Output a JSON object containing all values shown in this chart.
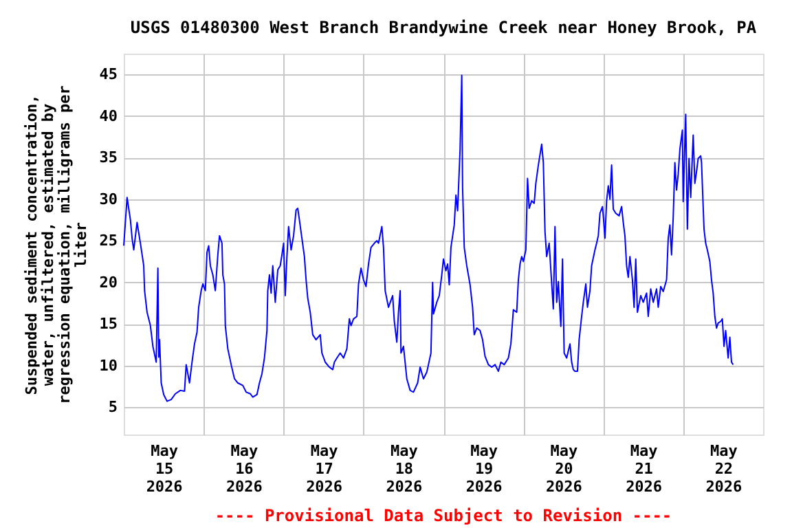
{
  "chart_data": {
    "type": "line",
    "title": "USGS 01480300 West Branch Brandywine Creek near Honey Brook, PA",
    "ylabel": "Suspended sediment concentration, water, unfiltered, estimated by regression equation, milligrams per liter",
    "annotations": [
      "---- Provisional Data Subject to Revision ----"
    ],
    "xlim": [
      "2026-05-15T00:00",
      "2026-05-23T00:00"
    ],
    "xticks": [
      {
        "value": "2026-05-15T12:00",
        "label": "May 15 2026"
      },
      {
        "value": "2026-05-16T00:00",
        "label": null
      },
      {
        "value": "2026-05-16T12:00",
        "label": "May 16 2026"
      },
      {
        "value": "2026-05-17T00:00",
        "label": null
      },
      {
        "value": "2026-05-17T12:00",
        "label": "May 17 2026"
      },
      {
        "value": "2026-05-18T00:00",
        "label": null
      },
      {
        "value": "2026-05-18T12:00",
        "label": "May 18 2026"
      },
      {
        "value": "2026-05-19T00:00",
        "label": null
      },
      {
        "value": "2026-05-19T12:00",
        "label": "May 19 2026"
      },
      {
        "value": "2026-05-20T00:00",
        "label": null
      },
      {
        "value": "2026-05-20T12:00",
        "label": "May 20 2026"
      },
      {
        "value": "2026-05-21T00:00",
        "label": null
      },
      {
        "value": "2026-05-21T12:00",
        "label": "May 21 2026"
      },
      {
        "value": "2026-05-22T00:00",
        "label": null
      },
      {
        "value": "2026-05-22T12:00",
        "label": "May 22 2026"
      }
    ],
    "ylim": [
      1.7,
      47.5
    ],
    "yticks": [
      5,
      10,
      15,
      20,
      25,
      30,
      35,
      40,
      45
    ],
    "grid": true,
    "x": [
      "2026-05-15T00:00",
      "2026-05-15T01:00",
      "2026-05-15T02:00",
      "2026-05-15T02:30",
      "2026-05-15T03:00",
      "2026-05-15T04:00",
      "2026-05-15T05:00",
      "2026-05-15T06:00",
      "2026-05-15T06:15",
      "2026-05-15T07:00",
      "2026-05-15T08:00",
      "2026-05-15T08:45",
      "2026-05-15T09:45",
      "2026-05-15T10:15",
      "2026-05-15T10:30",
      "2026-05-15T10:45",
      "2026-05-15T11:15",
      "2026-05-15T12:00",
      "2026-05-15T13:00",
      "2026-05-15T14:15",
      "2026-05-15T15:30",
      "2026-05-15T17:00",
      "2026-05-15T18:15",
      "2026-05-15T18:45",
      "2026-05-15T19:45",
      "2026-05-15T20:30",
      "2026-05-15T21:15",
      "2026-05-15T22:00",
      "2026-05-15T22:30",
      "2026-05-15T23:15",
      "2026-05-15T23:45",
      "2026-05-16T00:30",
      "2026-05-16T01:00",
      "2026-05-16T01:30",
      "2026-05-16T02:00",
      "2026-05-16T02:45",
      "2026-05-16T03:30",
      "2026-05-16T04:15",
      "2026-05-16T04:45",
      "2026-05-16T05:30",
      "2026-05-16T05:45",
      "2026-05-16T06:15",
      "2026-05-16T06:30",
      "2026-05-16T07:15",
      "2026-05-16T08:15",
      "2026-05-16T09:15",
      "2026-05-16T10:15",
      "2026-05-16T11:45",
      "2026-05-16T12:45",
      "2026-05-16T14:00",
      "2026-05-16T14:45",
      "2026-05-16T16:00",
      "2026-05-16T16:45",
      "2026-05-16T17:30",
      "2026-05-16T18:15",
      "2026-05-16T19:00",
      "2026-05-16T19:15",
      "2026-05-16T19:45",
      "2026-05-16T20:15",
      "2026-05-16T20:45",
      "2026-05-16T21:30",
      "2026-05-16T22:15",
      "2026-05-16T23:00",
      "2026-05-16T23:30",
      "2026-05-17T00:00",
      "2026-05-17T00:30",
      "2026-05-17T01:00",
      "2026-05-17T01:30",
      "2026-05-17T02:15",
      "2026-05-17T03:00",
      "2026-05-17T03:45",
      "2026-05-17T04:15",
      "2026-05-17T04:45",
      "2026-05-17T05:30",
      "2026-05-17T06:15",
      "2026-05-17T06:45",
      "2026-05-17T07:15",
      "2026-05-17T08:00",
      "2026-05-17T08:45",
      "2026-05-17T09:45",
      "2026-05-17T11:00",
      "2026-05-17T11:30",
      "2026-05-17T12:30",
      "2026-05-17T13:45",
      "2026-05-17T14:45",
      "2026-05-17T15:15",
      "2026-05-17T16:00",
      "2026-05-17T17:00",
      "2026-05-17T18:00",
      "2026-05-17T19:00",
      "2026-05-17T19:45",
      "2026-05-17T20:15",
      "2026-05-17T21:00",
      "2026-05-17T22:00",
      "2026-05-17T22:30",
      "2026-05-17T23:15",
      "2026-05-18T00:00",
      "2026-05-18T00:45",
      "2026-05-18T01:30",
      "2026-05-18T02:15",
      "2026-05-18T03:15",
      "2026-05-18T04:00",
      "2026-05-18T04:30",
      "2026-05-18T05:30",
      "2026-05-18T06:00",
      "2026-05-18T06:30",
      "2026-05-18T07:30",
      "2026-05-18T08:45",
      "2026-05-18T09:15",
      "2026-05-18T10:00",
      "2026-05-18T10:30",
      "2026-05-18T11:00",
      "2026-05-18T11:15",
      "2026-05-18T12:00",
      "2026-05-18T13:00",
      "2026-05-18T14:00",
      "2026-05-18T15:00",
      "2026-05-18T16:15",
      "2026-05-18T17:00",
      "2026-05-18T18:00",
      "2026-05-18T19:00",
      "2026-05-18T19:30",
      "2026-05-18T20:15",
      "2026-05-18T20:45",
      "2026-05-18T21:00",
      "2026-05-18T22:00",
      "2026-05-18T22:45",
      "2026-05-18T23:30",
      "2026-05-19T00:00",
      "2026-05-19T00:45",
      "2026-05-19T01:15",
      "2026-05-19T01:45",
      "2026-05-19T02:15",
      "2026-05-19T03:15",
      "2026-05-19T03:45",
      "2026-05-19T04:15",
      "2026-05-19T05:00",
      "2026-05-19T05:30",
      "2026-05-19T05:45",
      "2026-05-19T06:15",
      "2026-05-19T07:00",
      "2026-05-19T08:00",
      "2026-05-19T08:45",
      "2026-05-19T09:15",
      "2026-05-19T10:00",
      "2026-05-19T11:00",
      "2026-05-19T11:45",
      "2026-05-19T12:30",
      "2026-05-19T13:30",
      "2026-05-19T14:30",
      "2026-05-19T15:30",
      "2026-05-19T16:30",
      "2026-05-19T17:15",
      "2026-05-19T18:15",
      "2026-05-19T19:30",
      "2026-05-19T20:15",
      "2026-05-19T21:00",
      "2026-05-19T22:00",
      "2026-05-19T22:30",
      "2026-05-19T23:00",
      "2026-05-19T23:30",
      "2026-05-20T00:00",
      "2026-05-20T00:45",
      "2026-05-20T01:15",
      "2026-05-20T01:45",
      "2026-05-20T02:30",
      "2026-05-20T03:15",
      "2026-05-20T03:45",
      "2026-05-20T04:30",
      "2026-05-20T05:30",
      "2026-05-20T06:00",
      "2026-05-20T06:30",
      "2026-05-20T07:00",
      "2026-05-20T07:45",
      "2026-05-20T08:30",
      "2026-05-20T09:00",
      "2026-05-20T09:30",
      "2026-05-20T10:00",
      "2026-05-20T10:30",
      "2026-05-20T11:15",
      "2026-05-20T11:45",
      "2026-05-20T12:15",
      "2026-05-20T13:00",
      "2026-05-20T14:00",
      "2026-05-20T14:30",
      "2026-05-20T15:00",
      "2026-05-20T15:30",
      "2026-05-20T16:15",
      "2026-05-20T16:45",
      "2026-05-20T17:30",
      "2026-05-20T18:00",
      "2026-05-20T18:45",
      "2026-05-20T19:15",
      "2026-05-20T20:00",
      "2026-05-20T20:30",
      "2026-05-20T21:30",
      "2026-05-20T22:00",
      "2026-05-20T22:30",
      "2026-05-20T23:00",
      "2026-05-20T23:45",
      "2026-05-21T00:00",
      "2026-05-21T00:30",
      "2026-05-21T01:00",
      "2026-05-21T01:30",
      "2026-05-21T02:00",
      "2026-05-21T02:30",
      "2026-05-21T03:00",
      "2026-05-21T03:45",
      "2026-05-21T04:45",
      "2026-05-21T05:30",
      "2026-05-21T06:00",
      "2026-05-21T06:30",
      "2026-05-21T07:00",
      "2026-05-21T07:30",
      "2026-05-21T08:00",
      "2026-05-21T08:45",
      "2026-05-21T09:15",
      "2026-05-21T09:45",
      "2026-05-21T10:15",
      "2026-05-21T11:15",
      "2026-05-21T12:00",
      "2026-05-21T13:00",
      "2026-05-21T13:30",
      "2026-05-21T14:15",
      "2026-05-21T15:00",
      "2026-05-21T16:00",
      "2026-05-21T16:30",
      "2026-05-21T17:15",
      "2026-05-21T18:00",
      "2026-05-21T19:00",
      "2026-05-21T19:30",
      "2026-05-21T20:00",
      "2026-05-21T20:30",
      "2026-05-21T21:00",
      "2026-05-21T21:30",
      "2026-05-21T22:00",
      "2026-05-21T22:30",
      "2026-05-21T23:00",
      "2026-05-21T23:45",
      "2026-05-22T00:00",
      "2026-05-22T00:45",
      "2026-05-22T01:15",
      "2026-05-22T01:45",
      "2026-05-22T02:15",
      "2026-05-22T03:00",
      "2026-05-22T03:30",
      "2026-05-22T04:00",
      "2026-05-22T04:30",
      "2026-05-22T05:15",
      "2026-05-22T05:30",
      "2026-05-22T06:15",
      "2026-05-22T06:45",
      "2026-05-22T07:15",
      "2026-05-22T08:00",
      "2026-05-22T08:30",
      "2026-05-22T09:00",
      "2026-05-22T09:30",
      "2026-05-22T10:00",
      "2026-05-22T10:30",
      "2026-05-22T11:15",
      "2026-05-22T11:45",
      "2026-05-22T12:15",
      "2026-05-22T12:45",
      "2026-05-22T13:30",
      "2026-05-22T14:00",
      "2026-05-22T14:30",
      "2026-05-22T15:00"
    ],
    "series": [
      {
        "color": "#0000ff",
        "values": [
          24.4,
          30.2,
          27.5,
          25.3,
          23.9,
          27.2,
          24.7,
          22.0,
          19.0,
          16.4,
          14.8,
          12.3,
          10.4,
          21.7,
          11.0,
          13.1,
          7.9,
          6.5,
          5.7,
          5.9,
          6.6,
          7.0,
          6.9,
          10.1,
          7.9,
          10.4,
          12.6,
          14.0,
          17.0,
          19.0,
          19.8,
          19.0,
          23.6,
          24.4,
          22.0,
          20.9,
          19.0,
          23.3,
          25.6,
          24.7,
          20.9,
          19.8,
          14.8,
          12.0,
          10.1,
          8.4,
          7.9,
          7.6,
          6.8,
          6.6,
          6.2,
          6.5,
          7.9,
          9.0,
          10.9,
          14.2,
          19.0,
          20.9,
          18.7,
          22.0,
          17.6,
          21.5,
          22.0,
          23.3,
          24.7,
          18.4,
          23.1,
          26.7,
          23.9,
          25.6,
          28.7,
          28.9,
          27.5,
          25.3,
          23.1,
          20.3,
          18.1,
          16.4,
          13.7,
          13.1,
          13.7,
          11.5,
          10.4,
          9.8,
          9.5,
          10.4,
          10.9,
          11.5,
          10.9,
          12.0,
          15.6,
          14.8,
          15.6,
          15.9,
          19.8,
          21.7,
          20.3,
          19.5,
          22.2,
          24.2,
          24.7,
          25.0,
          24.7,
          26.7,
          24.2,
          19.0,
          17.0,
          18.4,
          15.3,
          12.8,
          16.4,
          19.0,
          11.5,
          12.3,
          8.4,
          7.0,
          6.8,
          7.9,
          9.8,
          8.4,
          9.2,
          10.1,
          11.5,
          20.0,
          16.2,
          17.6,
          18.4,
          20.9,
          22.8,
          21.4,
          22.2,
          19.7,
          24.2,
          26.9,
          30.5,
          28.6,
          36.0,
          44.9,
          31.4,
          24.2,
          22.0,
          19.7,
          17.0,
          13.7,
          14.5,
          14.2,
          13.1,
          11.1,
          10.1,
          9.8,
          10.1,
          9.3,
          10.4,
          10.1,
          10.9,
          12.6,
          16.7,
          16.4,
          20.3,
          22.2,
          23.1,
          22.5,
          23.9,
          32.5,
          28.9,
          29.8,
          29.5,
          31.9,
          34.1,
          36.6,
          34.4,
          26.1,
          23.1,
          24.7,
          19.9,
          16.8,
          26.7,
          17.6,
          20.1,
          14.7,
          22.8,
          11.5,
          10.9,
          12.6,
          10.4,
          9.5,
          9.3,
          9.3,
          13.1,
          15.9,
          17.6,
          19.8,
          17.0,
          19.0,
          22.0,
          23.9,
          24.7,
          25.6,
          28.3,
          29.1,
          28.0,
          25.3,
          29.8,
          31.6,
          30.0,
          34.1,
          28.8,
          28.3,
          28.0,
          29.1,
          27.2,
          25.6,
          22.0,
          20.6,
          23.1,
          20.3,
          17.0,
          22.8,
          16.4,
          18.4,
          17.6,
          18.7,
          15.9,
          19.2,
          17.6,
          19.2,
          17.0,
          19.5,
          18.9,
          20.3,
          25.3,
          26.9,
          23.3,
          27.8,
          34.4,
          31.1,
          33.0,
          36.0,
          38.3,
          29.7,
          40.2,
          26.4,
          34.9,
          30.2,
          37.7,
          31.9,
          33.3,
          34.9,
          35.2,
          34.4,
          26.4,
          24.7,
          23.9,
          22.5,
          20.3,
          18.7,
          15.9,
          14.5,
          15.1,
          15.3,
          15.6,
          12.3,
          14.2,
          10.9,
          13.4,
          10.4,
          10.1
        ]
      }
    ]
  }
}
